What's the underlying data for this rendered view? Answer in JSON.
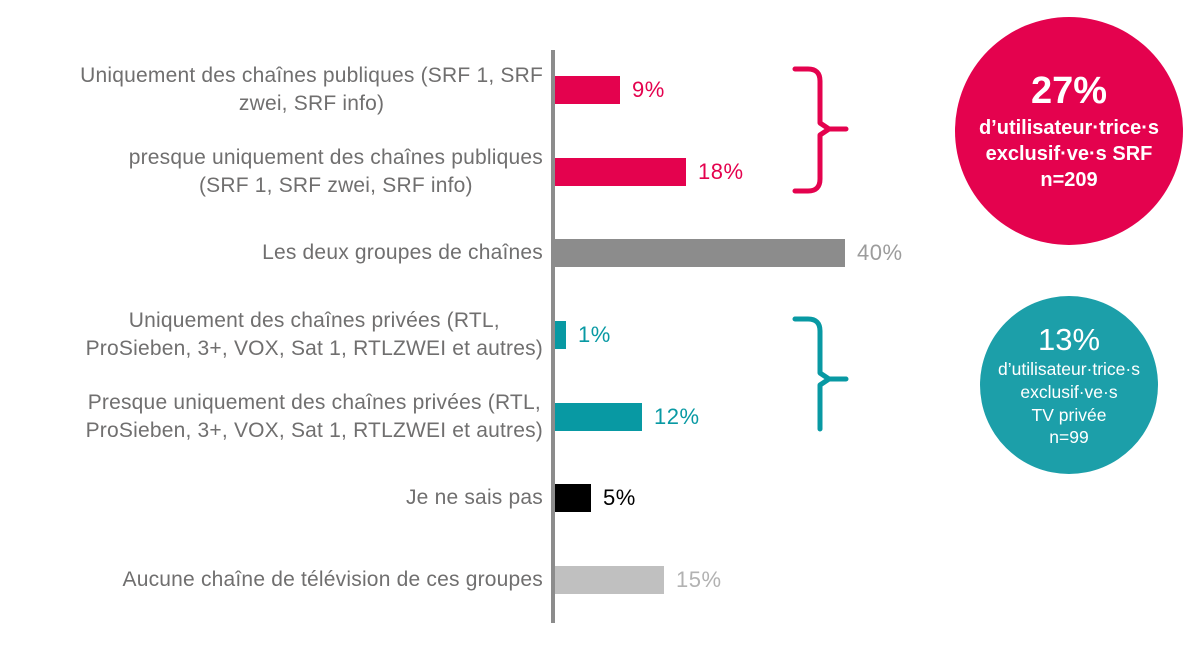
{
  "chart_data": {
    "type": "bar",
    "orientation": "horizontal",
    "title": "",
    "xlabel": "",
    "ylabel": "",
    "xlim": [
      0,
      40
    ],
    "grid": false,
    "legend": false,
    "categories": [
      "Uniquement des chaînes publiques (SRF 1, SRF\nzwei, SRF info)",
      "presque uniquement des chaînes publiques\n(SRF 1, SRF zwei, SRF info)",
      "Les deux groupes de chaînes",
      "Uniquement des chaînes privées (RTL,\nProSieben, 3+, VOX, Sat 1, RTLZWEI et autres)",
      "Presque uniquement des chaînes privées (RTL,\nProSieben, 3+, VOX, Sat 1, RTLZWEI et autres)",
      "Je ne sais pas",
      "Aucune chaîne de télévision de ces groupes"
    ],
    "values": [
      9,
      18,
      40,
      1,
      12,
      5,
      15
    ],
    "value_labels": [
      "9%",
      "18%",
      "40%",
      "1%",
      "12%",
      "5%",
      "15%"
    ],
    "bar_colors": [
      "#E4024E",
      "#E4024E",
      "#8C8C8C",
      "#0899A3",
      "#0899A3",
      "#000000",
      "#C0C0C0"
    ],
    "value_label_colors": [
      "#E4024E",
      "#E4024E",
      "#9C9C9C",
      "#0899A3",
      "#0899A3",
      "#000000",
      "#B2B2B2"
    ]
  },
  "annotations": {
    "srf_bracket_color": "#E4024E",
    "private_bracket_color": "#0899A3",
    "srf_circle": {
      "value": "27%",
      "line1": "d’utilisateur·trice·s",
      "line2": "exclusif·ve·s SRF",
      "line3": "n=209",
      "color": "#E4024E"
    },
    "private_circle": {
      "value": "13%",
      "line1": "d’utilisateur·trice·s",
      "line2": "exclusif·ve·s",
      "line3": "TV privée",
      "line4": "n=99",
      "color": "#1C9FA9"
    }
  },
  "colors": {
    "axis": "#8C8C8C",
    "category_label": "#706F6F",
    "background": "#FFFFFF"
  }
}
